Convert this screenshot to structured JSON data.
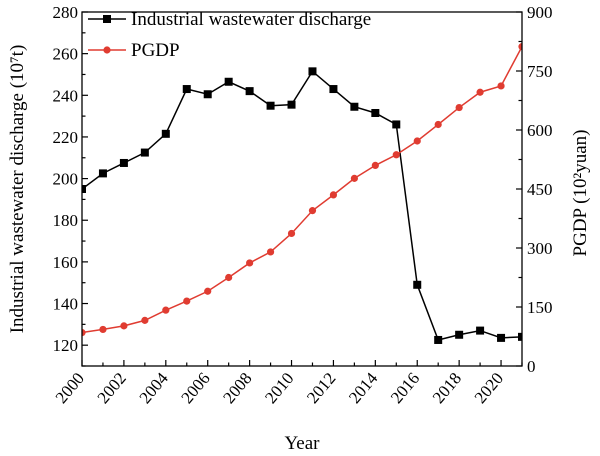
{
  "chart_data": {
    "type": "line",
    "x": [
      2000,
      2001,
      2002,
      2003,
      2004,
      2005,
      2006,
      2007,
      2008,
      2009,
      2010,
      2011,
      2012,
      2013,
      2014,
      2015,
      2016,
      2017,
      2018,
      2019,
      2020,
      2021
    ],
    "x_tick_labels": [
      "2000",
      "2002",
      "2004",
      "2006",
      "2008",
      "2010",
      "2012",
      "2014",
      "2016",
      "2018",
      "2020"
    ],
    "xlabel": "Year",
    "xlim": [
      2000,
      2021
    ],
    "series": [
      {
        "name": "Industrial wastewater discharge",
        "axis": "left",
        "color": "#000000",
        "marker": "square",
        "values": [
          195,
          202.5,
          207.5,
          212.5,
          221.5,
          243,
          240.5,
          246.5,
          242,
          235,
          235.5,
          251.5,
          243,
          234.5,
          231.5,
          226,
          149,
          122.5,
          125,
          127,
          123.5,
          124
        ]
      },
      {
        "name": "PGDP",
        "axis": "right",
        "color": "#e03c31",
        "marker": "circle",
        "values": [
          85,
          93,
          102,
          116,
          142,
          165,
          190,
          225,
          262,
          290,
          337,
          395,
          435,
          477,
          510,
          537,
          572,
          614,
          657,
          696,
          712,
          812
        ]
      }
    ],
    "y_left": {
      "label": "Industrial wastewater discharge (10⁷t)",
      "lim": [
        110,
        280
      ],
      "ticks": [
        "120",
        "140",
        "160",
        "180",
        "200",
        "220",
        "240",
        "260",
        "280"
      ]
    },
    "y_right": {
      "label": "PGDP (10²yuan)",
      "lim": [
        0,
        900
      ],
      "ticks": [
        "0",
        "150",
        "300",
        "450",
        "600",
        "750",
        "900"
      ]
    },
    "legend_position": "top-left",
    "grid": false
  }
}
